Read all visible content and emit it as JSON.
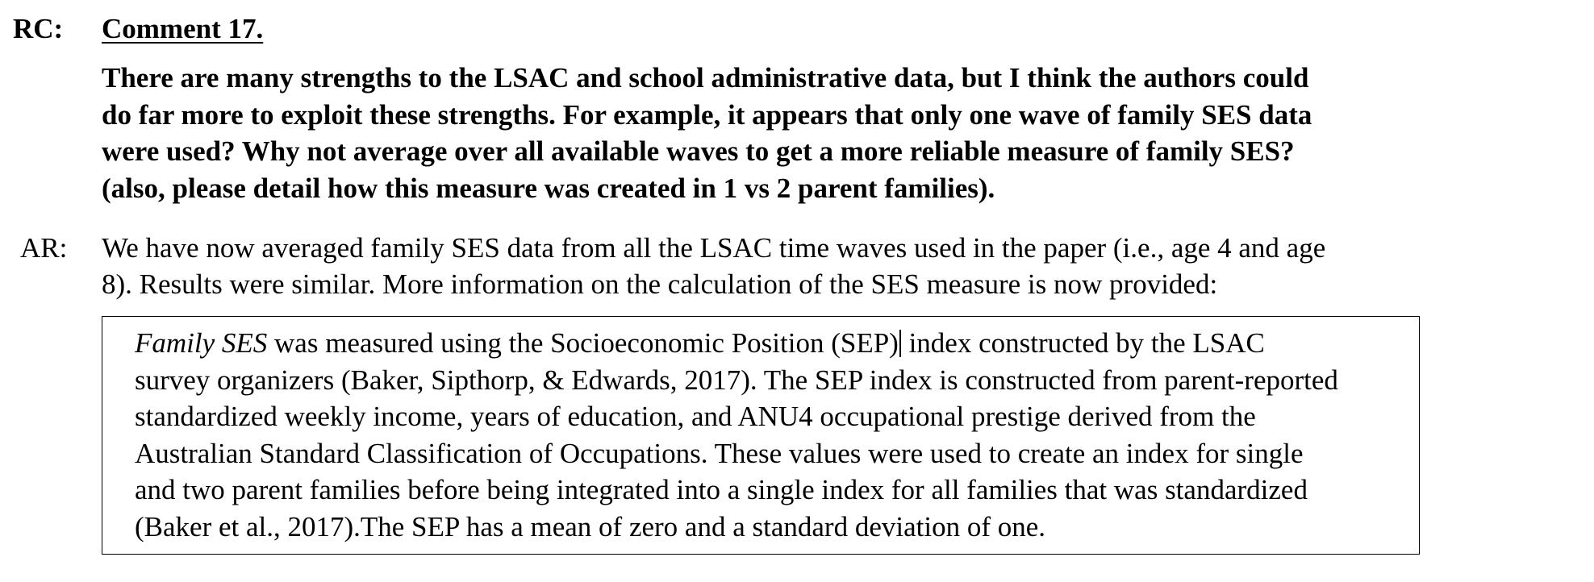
{
  "reviewer_tag": "RC:",
  "comment_heading": "Comment 17.",
  "reviewer_comment": {
    "lines": [
      "There are many strengths to the LSAC and school administrative data, but I think the authors could",
      "do far more to exploit these strengths. For example, it appears that only one wave of family SES data",
      "were used?  Why not average over all available waves to get a more reliable measure of family SES?",
      "(also, please detail how this measure was created in 1 vs 2 parent families)."
    ]
  },
  "author_tag": "AR:",
  "author_response": {
    "lines": [
      "We have now averaged family SES data from all the LSAC time waves used in the paper (i.e., age 4 and age",
      "8). Results were similar. More information on the calculation of the SES measure is now provided:"
    ]
  },
  "quoted_excerpt": {
    "line1_italic": "Family SES",
    "line1_before_cursor": " was measured using the Socioeconomic Position (SEP)",
    "line1_after_cursor": " index constructed by the LSAC",
    "lines": [
      "survey organizers (Baker, Sipthorp, & Edwards, 2017).  The SEP index is constructed from parent-reported",
      "standardized weekly income, years of education, and ANU4 occupational prestige derived from the",
      "Australian Standard Classification of Occupations.  These values were used to create an index for single",
      "and two parent families before being integrated into a single index for all families that was standardized",
      "(Baker et al., 2017).The SEP has a mean of zero and a standard deviation of one."
    ]
  }
}
